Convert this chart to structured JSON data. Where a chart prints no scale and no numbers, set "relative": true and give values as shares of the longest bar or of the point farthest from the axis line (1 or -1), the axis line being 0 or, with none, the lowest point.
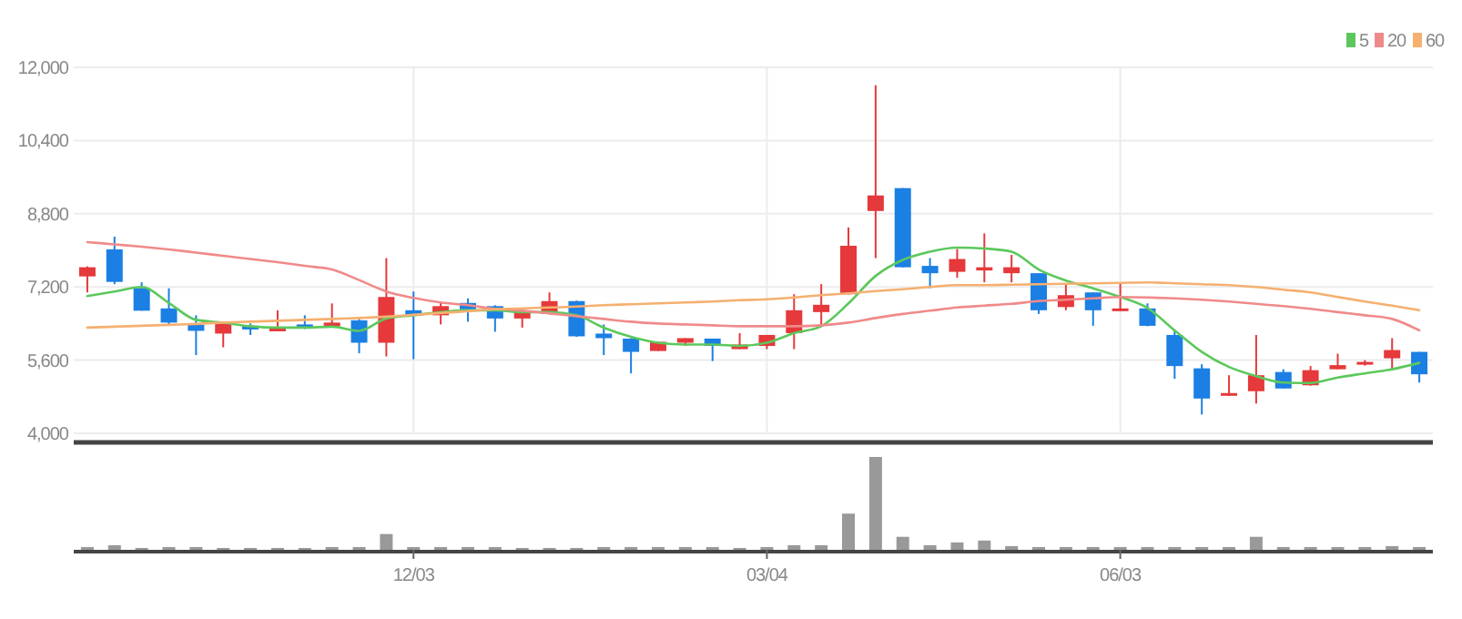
{
  "chart_data": [
    {
      "type": "candlestick",
      "categories": [
        null,
        null,
        null,
        null,
        null,
        null,
        null,
        null,
        null,
        null,
        null,
        null,
        null,
        null,
        null,
        null,
        null,
        null,
        null,
        null,
        null,
        null,
        null,
        null,
        null,
        null,
        null,
        null,
        null,
        null,
        null,
        null,
        null,
        null,
        null,
        null,
        null,
        null,
        null,
        null,
        null,
        null,
        null,
        null,
        null,
        null,
        null,
        null,
        null,
        null
      ],
      "ohlc": [
        [
          7430,
          7650,
          7080,
          7630
        ],
        [
          8020,
          8300,
          7260,
          7310
        ],
        [
          7170,
          7300,
          6680,
          6680
        ],
        [
          6730,
          7170,
          6380,
          6420
        ],
        [
          6380,
          6580,
          5710,
          6240
        ],
        [
          6180,
          6400,
          5880,
          6400
        ],
        [
          6350,
          6400,
          6150,
          6270
        ],
        [
          6230,
          6690,
          6230,
          6310
        ],
        [
          6380,
          6580,
          6280,
          6290
        ],
        [
          6340,
          6840,
          6330,
          6420
        ],
        [
          6470,
          6500,
          5750,
          5980
        ],
        [
          5980,
          7830,
          5680,
          6980
        ],
        [
          6690,
          7100,
          5620,
          6580
        ],
        [
          6580,
          6870,
          6380,
          6780
        ],
        [
          6850,
          6950,
          6440,
          6710
        ],
        [
          6780,
          6800,
          6220,
          6510
        ],
        [
          6510,
          6650,
          6310,
          6650
        ],
        [
          6610,
          7080,
          6600,
          6890
        ],
        [
          6890,
          6900,
          6110,
          6120
        ],
        [
          6180,
          6380,
          5710,
          6080
        ],
        [
          6070,
          6080,
          5310,
          5780
        ],
        [
          5800,
          6000,
          5800,
          6000
        ],
        [
          5980,
          6080,
          5910,
          6080
        ],
        [
          6070,
          6070,
          5580,
          5910
        ],
        [
          5840,
          6190,
          5840,
          5940
        ],
        [
          5910,
          6150,
          5840,
          6150
        ],
        [
          6190,
          7040,
          5840,
          6690
        ],
        [
          6650,
          7260,
          6340,
          6810
        ],
        [
          7040,
          8500,
          7040,
          8100
        ],
        [
          8860,
          11610,
          7830,
          9200
        ],
        [
          9360,
          9360,
          7630,
          7630
        ],
        [
          7660,
          7830,
          7170,
          7500
        ],
        [
          7530,
          8030,
          7400,
          7810
        ],
        [
          7560,
          8370,
          7300,
          7630
        ],
        [
          7500,
          7900,
          7300,
          7630
        ],
        [
          7500,
          7500,
          6610,
          6690
        ],
        [
          6760,
          7250,
          6690,
          7020
        ],
        [
          7080,
          7080,
          6350,
          6690
        ],
        [
          6670,
          7300,
          6670,
          6730
        ],
        [
          6730,
          6840,
          6340,
          6350
        ],
        [
          6150,
          6250,
          5190,
          5470
        ],
        [
          5420,
          5510,
          4410,
          4760
        ],
        [
          4820,
          5270,
          4820,
          4880
        ],
        [
          4920,
          6150,
          4650,
          5270
        ],
        [
          5340,
          5400,
          4980,
          4980
        ],
        [
          5050,
          5470,
          5040,
          5380
        ],
        [
          5400,
          5740,
          5400,
          5490
        ],
        [
          5500,
          5600,
          5480,
          5560
        ],
        [
          5640,
          6080,
          5380,
          5820
        ],
        [
          5780,
          5780,
          5110,
          5290
        ]
      ],
      "colors": [
        "#e5393b",
        "#1b7fe3",
        "#1b7fe3",
        "#1b7fe3",
        "#1b7fe3",
        "#e5393b",
        "#1b7fe3",
        "#e5393b",
        "#1b7fe3",
        "#e5393b",
        "#1b7fe3",
        "#e5393b",
        "#1b7fe3",
        "#e5393b",
        "#1b7fe3",
        "#1b7fe3",
        "#e5393b",
        "#e5393b",
        "#1b7fe3",
        "#1b7fe3",
        "#1b7fe3",
        "#e5393b",
        "#e5393b",
        "#1b7fe3",
        "#e5393b",
        "#e5393b",
        "#e5393b",
        "#e5393b",
        "#e5393b",
        "#e5393b",
        "#1b7fe3",
        "#1b7fe3",
        "#e5393b",
        "#e5393b",
        "#e5393b",
        "#1b7fe3",
        "#e5393b",
        "#1b7fe3",
        "#e5393b",
        "#1b7fe3",
        "#1b7fe3",
        "#1b7fe3",
        "#e5393b",
        "#e5393b",
        "#1b7fe3",
        "#e5393b",
        "#e5393b",
        "#e5393b",
        "#e5393b",
        "#1b7fe3"
      ],
      "series": [
        {
          "name": "5",
          "type": "line",
          "color": "#5cc85c",
          "values": [
            7000,
            7100,
            7200,
            6850,
            6480,
            6420,
            6340,
            6310,
            6310,
            6330,
            6240,
            6510,
            6580,
            6650,
            6690,
            6690,
            6650,
            6650,
            6580,
            6310,
            6110,
            5980,
            5940,
            5940,
            5910,
            5980,
            6190,
            6340,
            6840,
            7440,
            7790,
            7970,
            8060,
            8040,
            7970,
            7580,
            7340,
            7170,
            6980,
            6740,
            6250,
            5780,
            5450,
            5250,
            5110,
            5100,
            5220,
            5310,
            5400,
            5540
          ]
        },
        {
          "name": "20",
          "type": "line",
          "color": "#f08a8a",
          "values": [
            8180,
            8130,
            8080,
            8020,
            7950,
            7880,
            7810,
            7740,
            7660,
            7580,
            7350,
            7100,
            6960,
            6860,
            6800,
            6720,
            6680,
            6620,
            6560,
            6500,
            6440,
            6400,
            6380,
            6360,
            6340,
            6340,
            6340,
            6360,
            6420,
            6520,
            6610,
            6680,
            6750,
            6790,
            6830,
            6890,
            6920,
            6950,
            6980,
            6970,
            6950,
            6920,
            6880,
            6830,
            6780,
            6720,
            6650,
            6580,
            6500,
            6250
          ]
        },
        {
          "name": "60",
          "type": "line",
          "color": "#f5b070",
          "values": [
            6310,
            6330,
            6350,
            6370,
            6390,
            6420,
            6440,
            6460,
            6480,
            6500,
            6520,
            6550,
            6590,
            6630,
            6670,
            6710,
            6730,
            6750,
            6770,
            6800,
            6820,
            6840,
            6860,
            6880,
            6910,
            6930,
            6970,
            7020,
            7060,
            7110,
            7150,
            7200,
            7240,
            7240,
            7250,
            7260,
            7270,
            7280,
            7290,
            7300,
            7280,
            7260,
            7240,
            7200,
            7140,
            7080,
            6980,
            6880,
            6790,
            6690
          ]
        }
      ],
      "ylim": [
        4000,
        12000
      ],
      "yticks": [
        {
          "value": 4000,
          "label": "4,000"
        },
        {
          "value": 5600,
          "label": "5,600"
        },
        {
          "value": 7200,
          "label": "7,200"
        },
        {
          "value": 8800,
          "label": "8,800"
        },
        {
          "value": 10400,
          "label": "10,400"
        },
        {
          "value": 12000,
          "label": "12,000"
        }
      ],
      "grid": "y",
      "legend": "top right",
      "tick_labels": "y"
    },
    {
      "type": "bar",
      "categories": [
        null,
        null,
        null,
        null,
        null,
        null,
        null,
        null,
        null,
        null,
        null,
        null,
        "12/03",
        null,
        null,
        null,
        null,
        null,
        null,
        null,
        null,
        null,
        null,
        null,
        null,
        "03/04",
        null,
        null,
        null,
        null,
        null,
        null,
        null,
        null,
        null,
        null,
        null,
        null,
        "06/03",
        null,
        null,
        null,
        null,
        null,
        null,
        null,
        null,
        null,
        null,
        null
      ],
      "values": [
        0.03,
        0.05,
        0.02,
        0.03,
        0.03,
        0.02,
        0.02,
        0.02,
        0.02,
        0.03,
        0.03,
        0.17,
        0.03,
        0.03,
        0.03,
        0.03,
        0.02,
        0.02,
        0.02,
        0.03,
        0.03,
        0.03,
        0.03,
        0.03,
        0.02,
        0.03,
        0.05,
        0.05,
        0.39,
        1,
        0.14,
        0.05,
        0.08,
        0.1,
        0.04,
        0.03,
        0.03,
        0.03,
        0.03,
        0.03,
        0.03,
        0.03,
        0.03,
        0.14,
        0.03,
        0.03,
        0.03,
        0.03,
        0.04,
        0.03
      ],
      "color": "#999999",
      "relative": true,
      "grid": "x",
      "tick_labels": "x"
    }
  ]
}
